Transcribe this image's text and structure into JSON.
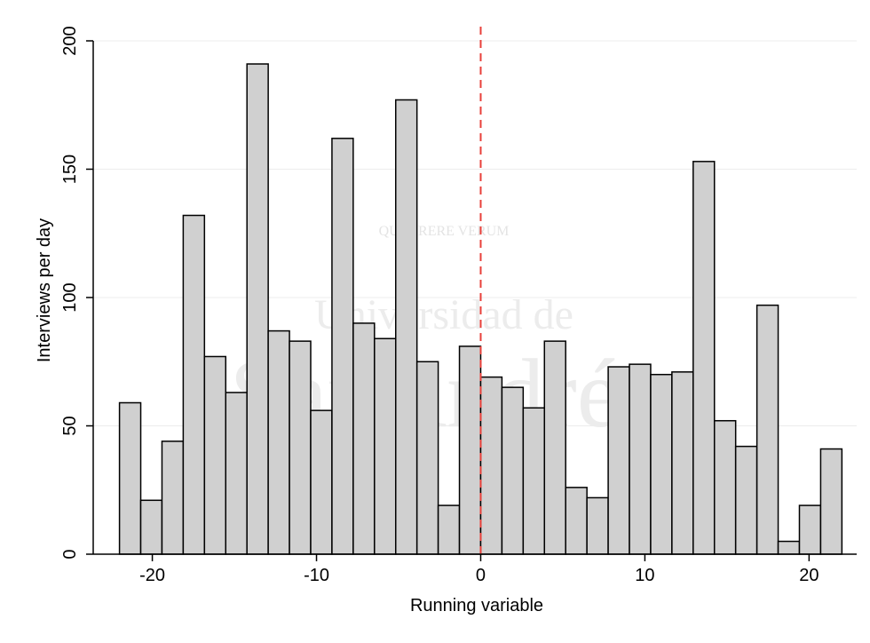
{
  "chart_data": {
    "type": "histogram",
    "x_label": "Running variable",
    "y_label": "Interviews per day",
    "bins": [
      -22,
      -20.706,
      -19.412,
      -18.118,
      -16.824,
      -15.529,
      -14.235,
      -12.941,
      -11.647,
      -10.353,
      -9.059,
      -7.765,
      -6.471,
      -5.176,
      -3.882,
      -2.588,
      -1.294,
      0,
      1.294,
      2.588,
      3.882,
      5.176,
      6.471,
      7.765,
      9.059,
      10.353,
      11.647,
      12.941,
      14.235,
      15.529,
      16.824,
      18.118,
      19.412,
      20.706,
      22
    ],
    "values": [
      59,
      21,
      44,
      132,
      77,
      63,
      191,
      87,
      83,
      56,
      162,
      90,
      84,
      177,
      75,
      19,
      81,
      69,
      65,
      57,
      83,
      26,
      22,
      73,
      74,
      70,
      71,
      153,
      52,
      42,
      97,
      5,
      19,
      41
    ],
    "color": "#d0d0d0",
    "xlim": [
      -23.6,
      22.9
    ],
    "xticks": [
      -20,
      -10,
      0,
      10,
      20
    ],
    "ylim": [
      0,
      200
    ],
    "yticks": [
      0,
      50,
      100,
      150,
      200
    ],
    "grid": true,
    "reference_line": {
      "x": 0,
      "color": "#e8403a"
    },
    "watermark": [
      "Universidad de",
      "SanAndrés",
      "QUAERERE VERUM"
    ]
  }
}
